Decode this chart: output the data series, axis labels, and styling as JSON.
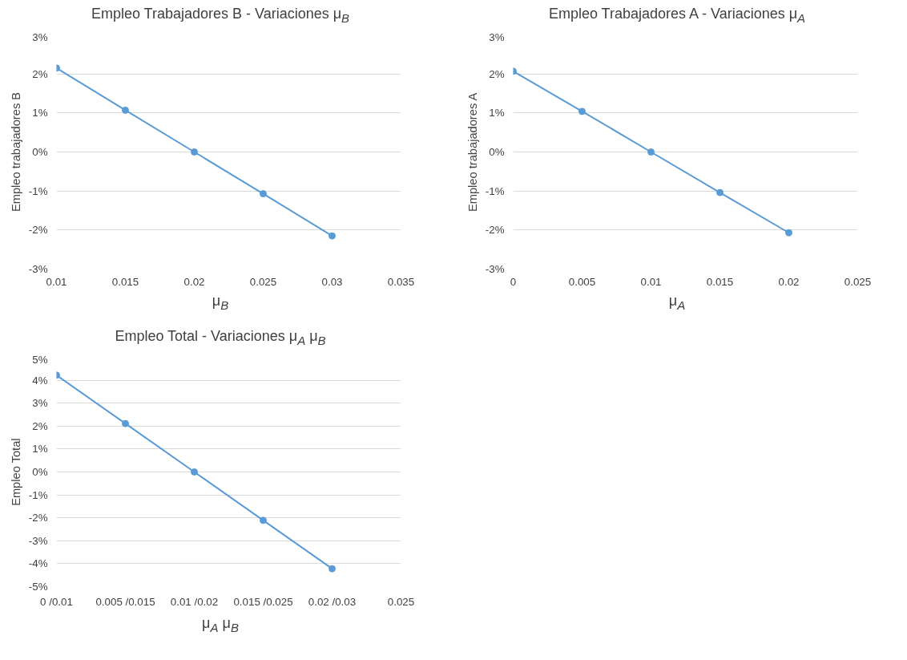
{
  "chart_data": [
    {
      "type": "line",
      "title": "Empleo Trabajadores B - Variaciones μ$_{B}$",
      "xlabel": "μ$_{B}$",
      "ylabel": "Empleo trabajadores B",
      "x": [
        0.01,
        0.015,
        0.02,
        0.025,
        0.03
      ],
      "series": [
        {
          "color": "#5b9bd5",
          "values": [
            2.15,
            1.07,
            0,
            -1.07,
            -2.15
          ]
        }
      ],
      "xlim": [
        0.01,
        0.035
      ],
      "xticks": [
        0.01,
        0.015,
        0.02,
        0.025,
        0.03,
        0.035
      ],
      "ylim": [
        -3,
        3
      ],
      "yticks": [
        {
          "value": -3,
          "label": "-3%"
        },
        {
          "value": -2,
          "label": "-2%"
        },
        {
          "value": -1,
          "label": "-1%"
        },
        {
          "value": 0,
          "label": "0%"
        },
        {
          "value": 1,
          "label": "1%"
        },
        {
          "value": 2,
          "label": "2%"
        },
        {
          "value": 3,
          "label": "3%"
        }
      ],
      "grid": "y",
      "marker": "circle",
      "line_style": "solid"
    },
    {
      "type": "line",
      "title": "Empleo Trabajadores A - Variaciones μ$_{A}$",
      "xlabel": "μ$_{A}$",
      "ylabel": "Empleo trabajadores A",
      "x": [
        0,
        0.005,
        0.01,
        0.015,
        0.02
      ],
      "series": [
        {
          "color": "#5b9bd5",
          "values": [
            2.07,
            1.04,
            0,
            -1.04,
            -2.07
          ]
        }
      ],
      "xlim": [
        0,
        0.025
      ],
      "xticks": [
        0,
        0.005,
        0.01,
        0.015,
        0.02,
        0.025
      ],
      "ylim": [
        -3,
        3
      ],
      "yticks": [
        {
          "value": -3,
          "label": "-3%"
        },
        {
          "value": -2,
          "label": "-2%"
        },
        {
          "value": -1,
          "label": "-1%"
        },
        {
          "value": 0,
          "label": "0%"
        },
        {
          "value": 1,
          "label": "1%"
        },
        {
          "value": 2,
          "label": "2%"
        },
        {
          "value": 3,
          "label": "3%"
        }
      ],
      "grid": "y",
      "marker": "circle",
      "line_style": "solid"
    },
    {
      "type": "line",
      "title": "Empleo Total - Variaciones μ$_{A}$ μ$_{B}$",
      "xlabel": "μ$_{A}$   μ$_{B}$",
      "ylabel": "Empleo Total",
      "categories": [
        "0 /0.01",
        "0.005 /0.015",
        "0.01 /0.02",
        "0.015 /0.025",
        "0.02 /0.03",
        "0.025"
      ],
      "series": [
        {
          "color": "#5b9bd5",
          "values": [
            4.22,
            2.11,
            0,
            -2.11,
            -4.22,
            null
          ]
        }
      ],
      "ylim": [
        -5,
        5
      ],
      "yticks": [
        {
          "value": -5,
          "label": "-5%"
        },
        {
          "value": -4,
          "label": "-4%"
        },
        {
          "value": -3,
          "label": "-3%"
        },
        {
          "value": -2,
          "label": "-2%"
        },
        {
          "value": -1,
          "label": "-1%"
        },
        {
          "value": 0,
          "label": "0%"
        },
        {
          "value": 1,
          "label": "1%"
        },
        {
          "value": 2,
          "label": "2%"
        },
        {
          "value": 3,
          "label": "3%"
        },
        {
          "value": 4,
          "label": "4%"
        },
        {
          "value": 5,
          "label": "5%"
        }
      ],
      "grid": "y",
      "marker": "circle",
      "line_style": "solid"
    }
  ]
}
